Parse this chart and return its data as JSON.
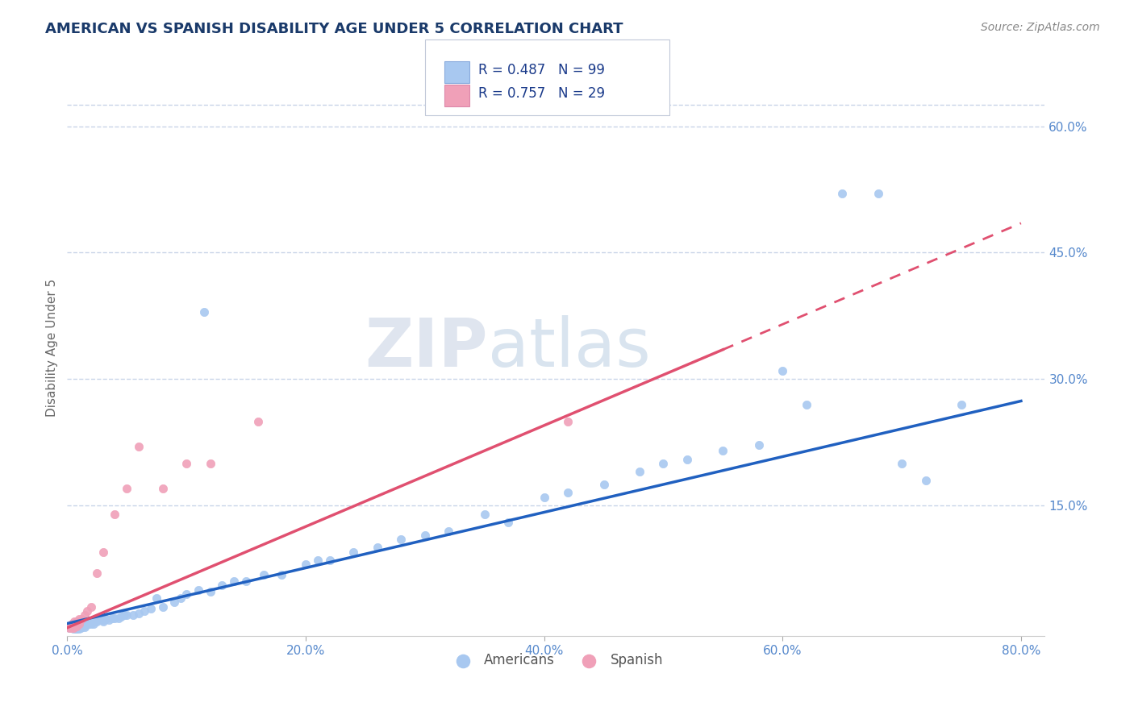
{
  "title": "AMERICAN VS SPANISH DISABILITY AGE UNDER 5 CORRELATION CHART",
  "source_text": "Source: ZipAtlas.com",
  "ylabel": "Disability Age Under 5",
  "xlim": [
    0.0,
    0.82
  ],
  "ylim": [
    -0.005,
    0.68
  ],
  "xtick_labels": [
    "0.0%",
    "20.0%",
    "40.0%",
    "60.0%",
    "80.0%"
  ],
  "xtick_vals": [
    0.0,
    0.2,
    0.4,
    0.6,
    0.8
  ],
  "ytick_labels": [
    "15.0%",
    "30.0%",
    "45.0%",
    "60.0%"
  ],
  "ytick_vals": [
    0.15,
    0.3,
    0.45,
    0.6
  ],
  "american_color": "#a8c8f0",
  "spanish_color": "#f0a0b8",
  "american_line_color": "#2060c0",
  "spanish_line_color": "#e05070",
  "legend_R_american": "R = 0.487",
  "legend_N_american": "N = 99",
  "legend_R_spanish": "R = 0.757",
  "legend_N_spanish": "N = 29",
  "watermark_ZIP": "ZIP",
  "watermark_atlas": "atlas",
  "background_color": "#ffffff",
  "grid_color": "#c8d4e8",
  "title_color": "#1a3a6a",
  "source_color": "#888888",
  "tick_color": "#5588cc",
  "ylabel_color": "#666666",
  "am_intercept": 0.01,
  "am_slope": 0.33,
  "sp_intercept": 0.005,
  "sp_slope": 0.6,
  "sp_line_solid_end": 0.55,
  "americans_x": [
    0.002,
    0.003,
    0.003,
    0.003,
    0.004,
    0.004,
    0.004,
    0.005,
    0.005,
    0.005,
    0.005,
    0.006,
    0.006,
    0.006,
    0.007,
    0.007,
    0.007,
    0.007,
    0.008,
    0.008,
    0.008,
    0.008,
    0.009,
    0.009,
    0.009,
    0.01,
    0.01,
    0.01,
    0.01,
    0.011,
    0.011,
    0.012,
    0.012,
    0.013,
    0.013,
    0.014,
    0.015,
    0.015,
    0.016,
    0.017,
    0.018,
    0.019,
    0.02,
    0.022,
    0.023,
    0.025,
    0.027,
    0.03,
    0.03,
    0.032,
    0.035,
    0.038,
    0.04,
    0.043,
    0.045,
    0.048,
    0.05,
    0.055,
    0.06,
    0.065,
    0.07,
    0.075,
    0.08,
    0.09,
    0.095,
    0.1,
    0.11,
    0.115,
    0.12,
    0.13,
    0.14,
    0.15,
    0.165,
    0.18,
    0.2,
    0.21,
    0.22,
    0.24,
    0.26,
    0.28,
    0.3,
    0.32,
    0.35,
    0.37,
    0.4,
    0.42,
    0.45,
    0.48,
    0.5,
    0.52,
    0.55,
    0.58,
    0.6,
    0.62,
    0.65,
    0.68,
    0.7,
    0.72,
    0.75
  ],
  "americans_y": [
    0.005,
    0.005,
    0.006,
    0.007,
    0.005,
    0.007,
    0.008,
    0.004,
    0.006,
    0.008,
    0.01,
    0.005,
    0.007,
    0.01,
    0.004,
    0.006,
    0.008,
    0.01,
    0.004,
    0.006,
    0.008,
    0.012,
    0.005,
    0.007,
    0.01,
    0.004,
    0.006,
    0.009,
    0.012,
    0.005,
    0.008,
    0.006,
    0.01,
    0.007,
    0.01,
    0.008,
    0.006,
    0.01,
    0.009,
    0.01,
    0.01,
    0.012,
    0.01,
    0.01,
    0.012,
    0.012,
    0.014,
    0.012,
    0.014,
    0.015,
    0.014,
    0.016,
    0.016,
    0.016,
    0.018,
    0.02,
    0.02,
    0.02,
    0.022,
    0.025,
    0.028,
    0.04,
    0.03,
    0.035,
    0.04,
    0.045,
    0.05,
    0.38,
    0.048,
    0.055,
    0.06,
    0.06,
    0.068,
    0.068,
    0.08,
    0.085,
    0.085,
    0.095,
    0.1,
    0.11,
    0.115,
    0.12,
    0.14,
    0.13,
    0.16,
    0.165,
    0.175,
    0.19,
    0.2,
    0.205,
    0.215,
    0.222,
    0.31,
    0.27,
    0.52,
    0.52,
    0.2,
    0.18,
    0.27
  ],
  "spanish_x": [
    0.002,
    0.003,
    0.003,
    0.004,
    0.004,
    0.004,
    0.005,
    0.005,
    0.006,
    0.006,
    0.007,
    0.008,
    0.008,
    0.01,
    0.01,
    0.012,
    0.015,
    0.017,
    0.02,
    0.025,
    0.03,
    0.04,
    0.05,
    0.06,
    0.08,
    0.1,
    0.12,
    0.16,
    0.42
  ],
  "spanish_y": [
    0.005,
    0.006,
    0.008,
    0.005,
    0.007,
    0.01,
    0.005,
    0.009,
    0.006,
    0.012,
    0.008,
    0.007,
    0.012,
    0.01,
    0.015,
    0.015,
    0.02,
    0.025,
    0.03,
    0.07,
    0.095,
    0.14,
    0.17,
    0.22,
    0.17,
    0.2,
    0.2,
    0.25,
    0.25
  ]
}
